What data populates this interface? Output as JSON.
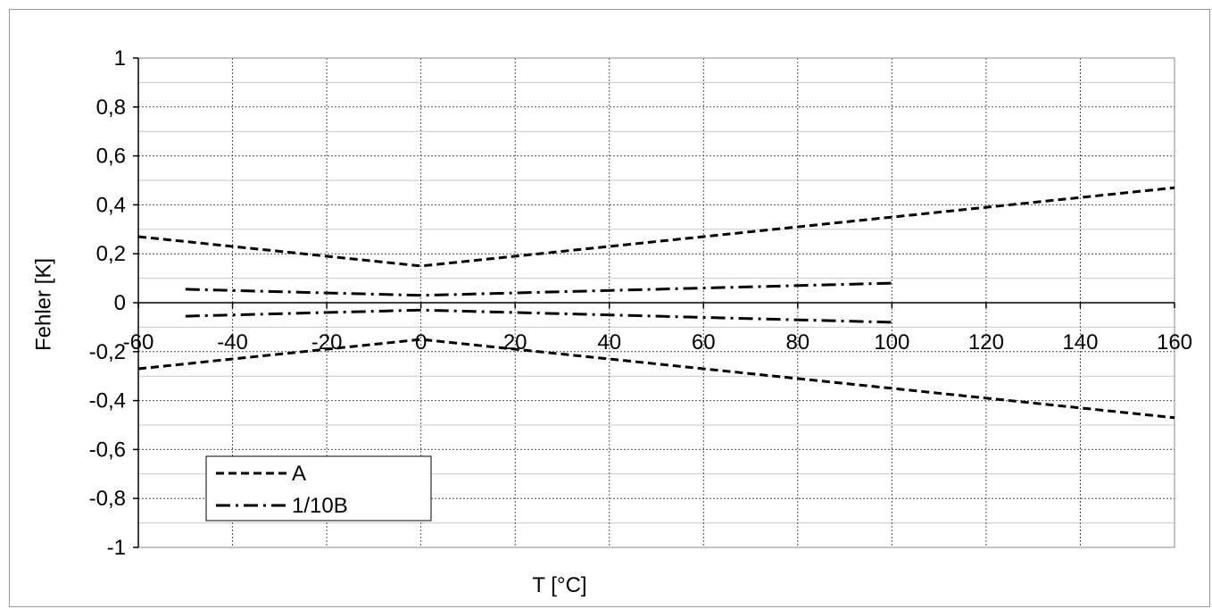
{
  "chart_data": {
    "type": "line",
    "xlabel": "T [°C]",
    "ylabel": "Fehler [K]",
    "xlim": [
      -60,
      160
    ],
    "ylim": [
      -1,
      1
    ],
    "x_ticks": [
      -60,
      -40,
      -20,
      0,
      20,
      40,
      60,
      80,
      100,
      120,
      140,
      160
    ],
    "y_ticks": [
      1,
      0.8,
      0.6,
      0.4,
      0.2,
      0,
      -0.2,
      -0.4,
      -0.6,
      -0.8,
      -1
    ],
    "x_tick_labels": [
      "-60",
      "-40",
      "-20",
      "0",
      "20",
      "40",
      "60",
      "80",
      "100",
      "120",
      "140",
      "160"
    ],
    "y_tick_labels": [
      "1",
      "0,8",
      "0,6",
      "0,4",
      "0,2",
      "0",
      "-0,2",
      "-0,4",
      "-0,6",
      "-0,8",
      "-1"
    ],
    "grid": true,
    "legend_position": "bottom-left",
    "series": [
      {
        "name": "A",
        "style": "dashed",
        "color": "#000000",
        "upper": {
          "x": [
            -60,
            0,
            160
          ],
          "y": [
            0.27,
            0.15,
            0.47
          ]
        },
        "lower": {
          "x": [
            -60,
            0,
            160
          ],
          "y": [
            -0.27,
            -0.15,
            -0.47
          ]
        }
      },
      {
        "name": "1/10B",
        "style": "dash-dot",
        "color": "#000000",
        "upper": {
          "x": [
            -50,
            0,
            100
          ],
          "y": [
            0.055,
            0.03,
            0.08
          ]
        },
        "lower": {
          "x": [
            -50,
            0,
            100
          ],
          "y": [
            -0.055,
            -0.03,
            -0.08
          ]
        }
      }
    ]
  }
}
